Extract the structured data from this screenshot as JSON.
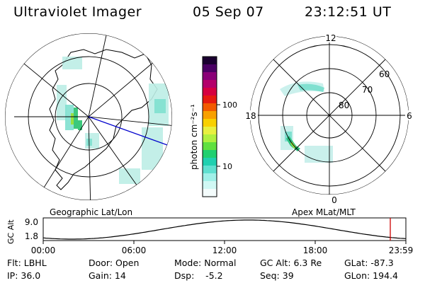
{
  "header": {
    "title": "Ultraviolet Imager",
    "date": "05 Sep 07",
    "time": "23:12:51 UT"
  },
  "maps": {
    "left_caption": "Geographic Lat/Lon",
    "right_caption": "Apex MLat/MLT",
    "mlt_labels": [
      "12",
      "18",
      "6",
      "0"
    ],
    "mlat_labels": [
      "60",
      "70",
      "80"
    ]
  },
  "colorbar": {
    "unit_label": "photon cm⁻²s⁻¹",
    "ticks": [
      "100",
      "10"
    ],
    "colors": [
      "#1a0030",
      "#4a0064",
      "#8a0078",
      "#b4006a",
      "#d60040",
      "#e61a10",
      "#f25a00",
      "#f8a000",
      "#f8d000",
      "#e8f040",
      "#b0f040",
      "#60e040",
      "#20d070",
      "#20d0b0",
      "#60e0d0",
      "#a0f0e8",
      "#d0f8f4",
      "#f4fcfc"
    ]
  },
  "altitude_plot": {
    "ylabel": "GC Alt",
    "ymax_label": "9.0",
    "ymin_label": "1.8",
    "xticks": [
      "00:00",
      "06:00",
      "12:00",
      "18:00",
      "23:59"
    ],
    "line_color": "#000000",
    "marker_color": "#cc0000"
  },
  "info": {
    "row1": {
      "flt": "Flt: LBHL",
      "door": "Door: Open",
      "mode": "Mode: Normal",
      "gc_alt": "GC Alt: 6.3 Re",
      "glat": "GLat: -87.3"
    },
    "row2": {
      "ip": "IP: 36.0",
      "gain": "Gain: 14",
      "dsp": "Dsp:    -5.2",
      "seq": "Seq: 39",
      "glon": "GLon: 194.4"
    }
  }
}
